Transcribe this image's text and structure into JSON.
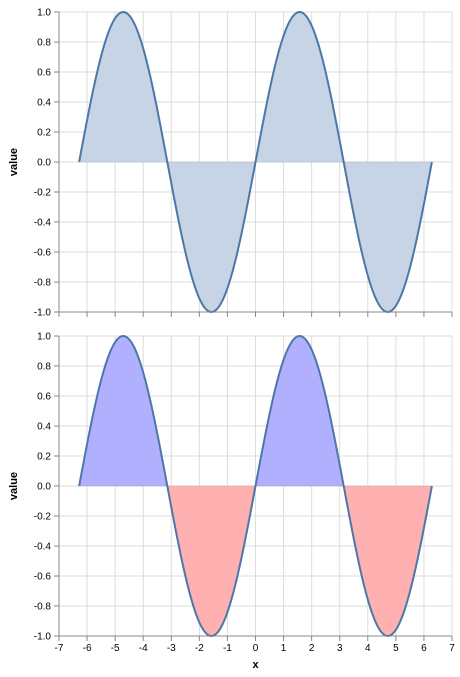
{
  "chart_data": [
    {
      "type": "area",
      "function": "sin(x)",
      "x_range": [
        -6.283,
        6.283
      ],
      "xlim": [
        -7,
        7
      ],
      "ylim": [
        -1,
        1
      ],
      "xticks": [
        -7,
        -6,
        -5,
        -4,
        -3,
        -2,
        -1,
        0,
        1,
        2,
        3,
        4,
        5,
        6,
        7
      ],
      "yticks": [
        "-1.0",
        "-0.8",
        "-0.6",
        "-0.4",
        "-0.2",
        "0.0",
        "0.2",
        "0.4",
        "0.6",
        "0.8",
        "1.0"
      ],
      "xlabel": "",
      "ylabel": "value",
      "grid": true,
      "show_x_tick_labels": false,
      "fill_positive": "#c6d4e5",
      "fill_negative": "#c6d4e5",
      "line_color": "#4c78a8"
    },
    {
      "type": "area",
      "function": "sin(x)",
      "x_range": [
        -6.283,
        6.283
      ],
      "xlim": [
        -7,
        7
      ],
      "ylim": [
        -1,
        1
      ],
      "xticks": [
        -7,
        -6,
        -5,
        -4,
        -3,
        -2,
        -1,
        0,
        1,
        2,
        3,
        4,
        5,
        6,
        7
      ],
      "yticks": [
        "-1.0",
        "-0.8",
        "-0.6",
        "-0.4",
        "-0.2",
        "0.0",
        "0.2",
        "0.4",
        "0.6",
        "0.8",
        "1.0"
      ],
      "xlabel": "x",
      "ylabel": "value",
      "grid": true,
      "show_x_tick_labels": true,
      "fill_positive": "#b0b0ff",
      "fill_negative": "#ffb0b0",
      "line_color": "#4c78a8"
    }
  ]
}
